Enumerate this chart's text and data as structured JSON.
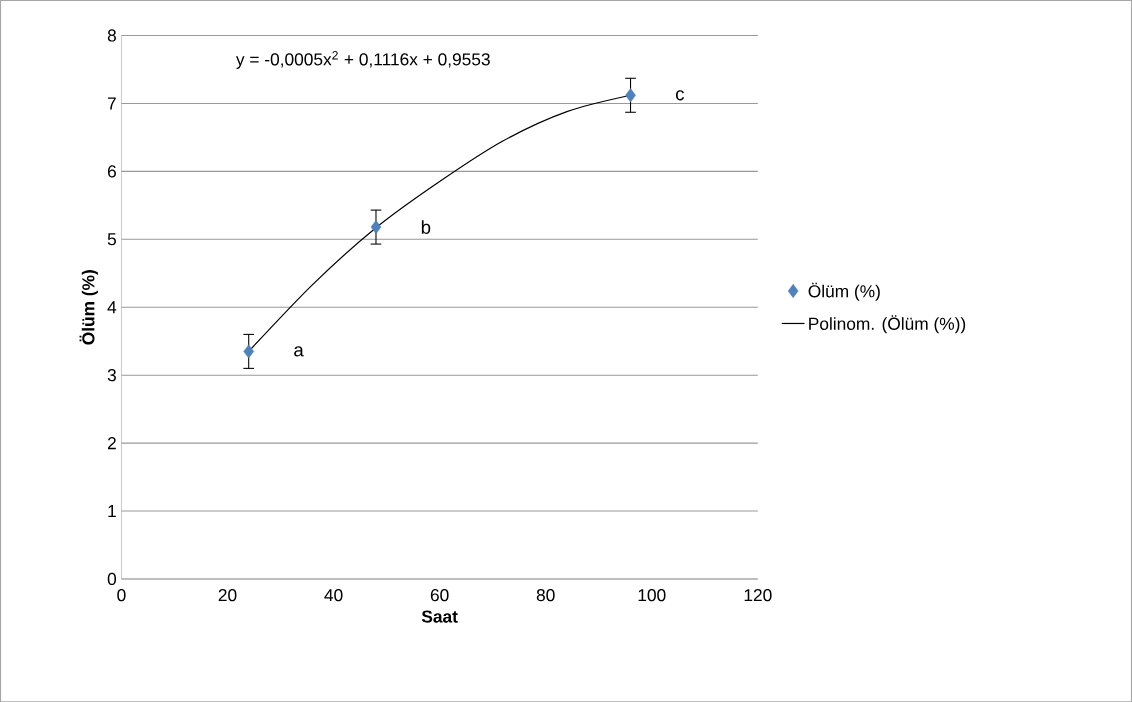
{
  "chart_data": {
    "type": "scatter",
    "xlabel": "Saat",
    "ylabel": "Ölüm (%)",
    "x": [
      24,
      48,
      96
    ],
    "series": [
      {
        "name": "Ölüm (%)",
        "color": "#4f81bd",
        "marker": "diamond",
        "values": [
          3.35,
          5.18,
          7.12
        ],
        "errors": [
          0.25,
          0.25,
          0.25
        ]
      },
      {
        "name": "Polinom. (Ölüm (%))",
        "type": "line",
        "color": "#000000",
        "marker": "none",
        "line_style": "solid",
        "x": [
          24,
          36,
          48,
          60,
          72,
          84,
          96
        ],
        "values": [
          3.35,
          4.33,
          5.17,
          5.85,
          6.45,
          6.88,
          7.12
        ]
      }
    ],
    "xlim": [
      0,
      120
    ],
    "xticks": [
      0,
      20,
      40,
      60,
      80,
      100,
      120
    ],
    "ylim": [
      0,
      8
    ],
    "yticks": [
      0,
      1,
      2,
      3,
      4,
      5,
      6,
      7,
      8
    ],
    "grid": "y",
    "legend": "right",
    "annotations": [
      "y = -0,0005x$^{2}$ + 0,1116x + 0,9553",
      {
        "text": "a",
        "x": 24,
        "y": 3.35
      },
      {
        "text": "b",
        "x": 48,
        "y": 5.18
      },
      {
        "text": "c",
        "x": 96,
        "y": 7.12
      }
    ]
  }
}
